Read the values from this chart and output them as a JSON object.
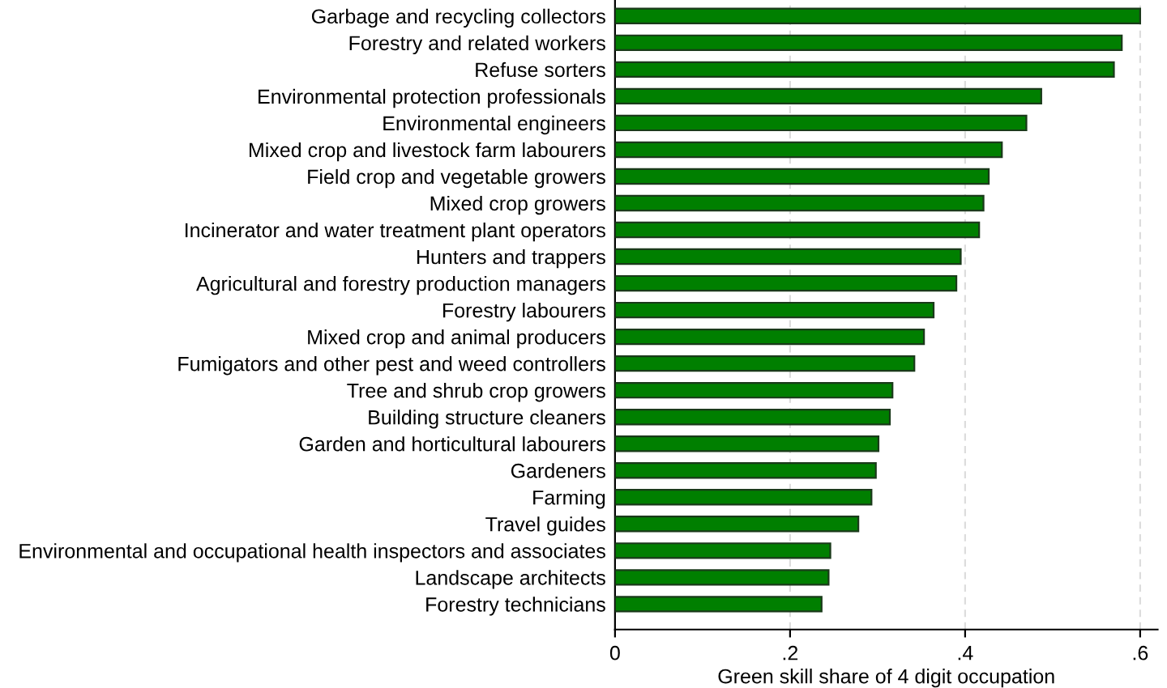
{
  "chart_data": {
    "type": "bar",
    "orientation": "horizontal",
    "xlabel": "Green skill share of 4 digit occupation",
    "categories": [
      "Garbage and recycling collectors",
      "Forestry and related workers",
      "Refuse sorters",
      "Environmental protection professionals",
      "Environmental engineers",
      "Mixed crop and livestock farm labourers",
      "Field crop and vegetable growers",
      "Mixed crop growers",
      "Incinerator and water treatment plant operators",
      "Hunters and trappers",
      "Agricultural and forestry production managers",
      "Forestry labourers",
      "Mixed crop and animal producers",
      "Fumigators and other pest and weed controllers",
      "Tree and shrub crop growers",
      "Building structure cleaners",
      "Garden and horticultural labourers",
      "Gardeners",
      "Farming",
      "Travel guides",
      "Environmental and occupational health inspectors and associates",
      "Landscape architects",
      "Forestry technicians"
    ],
    "values": [
      0.6,
      0.579,
      0.57,
      0.487,
      0.47,
      0.442,
      0.427,
      0.421,
      0.416,
      0.395,
      0.39,
      0.364,
      0.353,
      0.342,
      0.317,
      0.314,
      0.301,
      0.298,
      0.293,
      0.278,
      0.246,
      0.244,
      0.236
    ],
    "color": "#007f00",
    "xlim": [
      0,
      0.62
    ],
    "xticks": [
      {
        "value": 0,
        "label": "0"
      },
      {
        "value": 0.2,
        "label": ".2"
      },
      {
        "value": 0.4,
        "label": ".4"
      },
      {
        "value": 0.6,
        "label": ".6"
      }
    ],
    "grid": "x",
    "legend": false
  }
}
